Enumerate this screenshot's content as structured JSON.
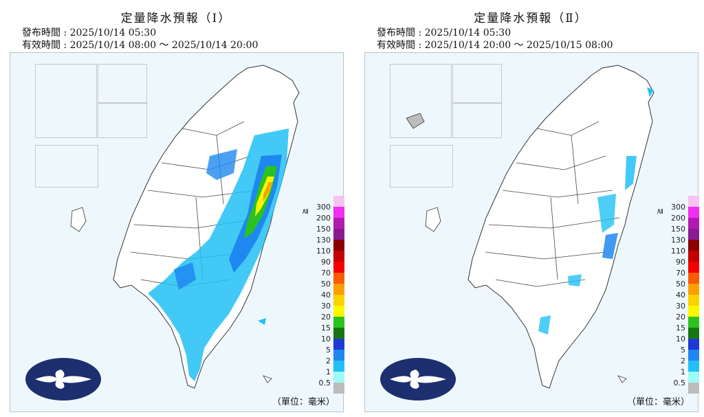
{
  "panels": [
    {
      "title": "定量降水預報（Ⅰ）",
      "issued": "發布時間 : 2025/10/14 05:30",
      "valid": "有效時間 : 2025/10/14 08:00 ～ 2025/10/14 20:00",
      "unit": "（單位：毫米）"
    },
    {
      "title": "定量降水預報（Ⅱ）",
      "issued": "發布時間 : 2025/10/14 05:30",
      "valid": "有效時間 : 2025/10/14 20:00 ～ 2025/10/15 08:00",
      "unit": "（單位：毫米）"
    }
  ],
  "legend": {
    "labels": [
      "300",
      "200",
      "150",
      "130",
      "110",
      "90",
      "70",
      "50",
      "40",
      "30",
      "20",
      "15",
      "10",
      "5",
      "2",
      "1",
      "0.5"
    ],
    "ge_symbol": "≧",
    "colors": [
      "#f6c3f1",
      "#f22ef0",
      "#b21bb0",
      "#8a1a92",
      "#8a0000",
      "#c40000",
      "#f50000",
      "#fa5b00",
      "#fa9f00",
      "#fad200",
      "#fbf700",
      "#2bc21f",
      "#167712",
      "#1e3ad2",
      "#1f88f0",
      "#22c0f5",
      "#9ffaf6",
      "#bdbdbd"
    ]
  },
  "logo": {
    "icon": "cwa-cloud-logo",
    "colors": {
      "bg": "#1d2f6f",
      "fg": "#ffffff"
    }
  }
}
